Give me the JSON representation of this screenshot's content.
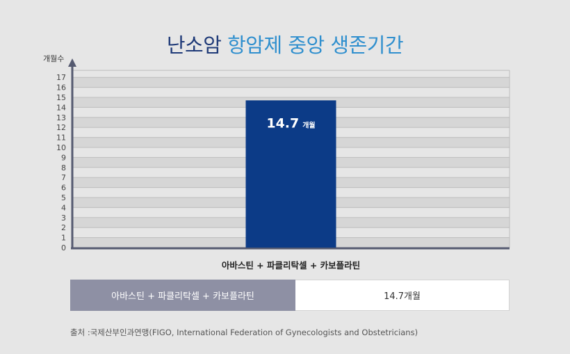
{
  "title": {
    "part1": "난소암",
    "part2": "항암제 중앙 생존기간"
  },
  "colors": {
    "title_dark": "#1f3a78",
    "title_accent": "#2f8fce",
    "bar": "#0c3b87",
    "grid_band": "#d6d6d6",
    "axis": "#555a70"
  },
  "chart_data": {
    "type": "bar",
    "ylabel": "개월수",
    "yticks": [
      0,
      1,
      2,
      3,
      4,
      5,
      6,
      7,
      8,
      9,
      10,
      11,
      12,
      13,
      14,
      15,
      16,
      17
    ],
    "ylim": [
      0,
      17.7
    ],
    "categories": [
      "아바스틴 + 파클리탁셀 + 카보플라틴"
    ],
    "values": [
      14.7
    ],
    "data_labels": [
      {
        "number": "14.7",
        "unit": "개월"
      }
    ],
    "grid": true,
    "legend": "none"
  },
  "table": {
    "regimen": "아바스틴 + 파클리탁셀 + 카보플라틴",
    "value": "14.7개월"
  },
  "source": "출처 :국제산부인과연맹(FIGO, International Federation of Gynecologists and Obstetricians)"
}
